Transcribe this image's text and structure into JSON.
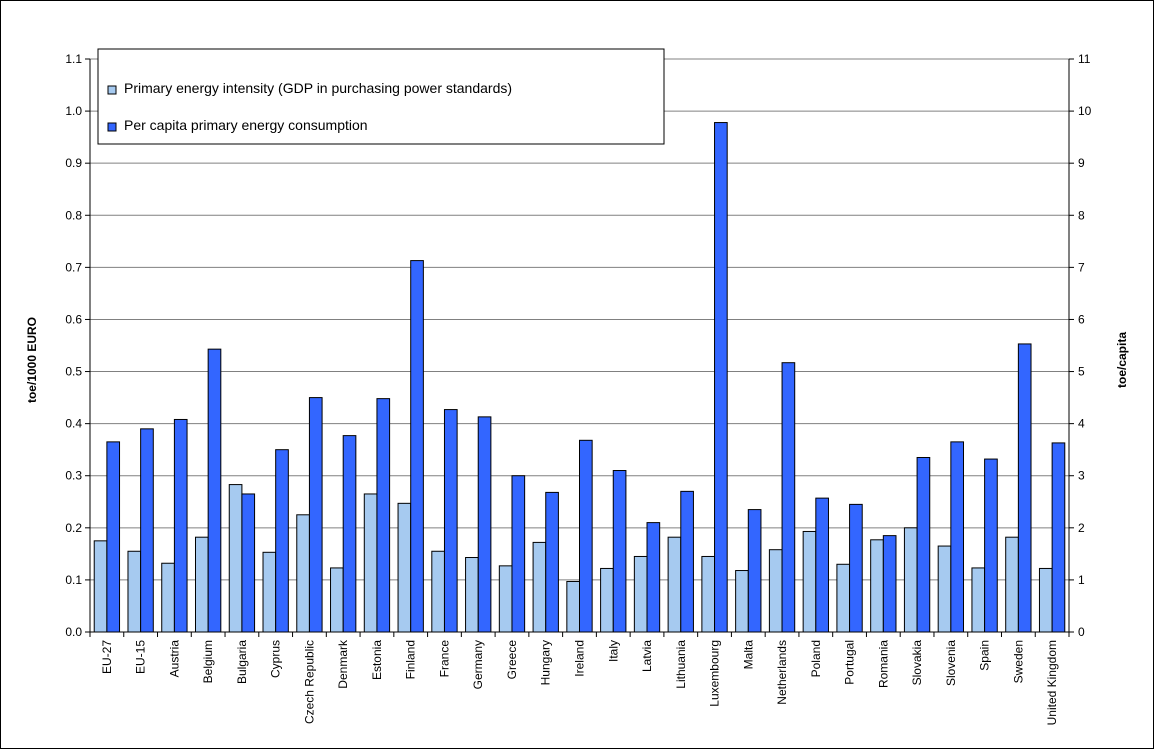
{
  "chart_data": {
    "type": "bar",
    "title": "",
    "ylabel": "toe/1000 EURO",
    "y2label": "toe/capita",
    "ylim": [
      0,
      1.1
    ],
    "y2lim": [
      0,
      11
    ],
    "yticks": [
      "0.0",
      "0.1",
      "0.2",
      "0.3",
      "0.4",
      "0.5",
      "0.6",
      "0.7",
      "0.8",
      "0.9",
      "1.0",
      "1.1"
    ],
    "y2ticks": [
      "0",
      "1",
      "2",
      "3",
      "4",
      "5",
      "6",
      "7",
      "8",
      "9",
      "10",
      "11"
    ],
    "grid": true,
    "legend_position": "top-left",
    "categories": [
      "EU-27",
      "EU-15",
      "Austria",
      "Belgium",
      "Bulgaria",
      "Cyprus",
      "Czech Republic",
      "Denmark",
      "Estonia",
      "Finland",
      "France",
      "Germany",
      "Greece",
      "Hungary",
      "Ireland",
      "Italy",
      "Latvia",
      "Lithuania",
      "Luxembourg",
      "Malta",
      "Netherlands",
      "Poland",
      "Portugal",
      "Romania",
      "Slovakia",
      "Slovenia",
      "Spain",
      "Sweden",
      "United Kingdom"
    ],
    "series": [
      {
        "name": "Primary energy intensity (GDP in purchasing power standards)",
        "axis": "left",
        "color": "#a6caf0",
        "values": [
          0.175,
          0.155,
          0.132,
          0.182,
          0.283,
          0.153,
          0.225,
          0.123,
          0.265,
          0.247,
          0.155,
          0.143,
          0.127,
          0.172,
          0.097,
          0.122,
          0.145,
          0.182,
          0.145,
          0.118,
          0.158,
          0.193,
          0.13,
          0.177,
          0.2,
          0.165,
          0.123,
          0.182,
          0.122
        ]
      },
      {
        "name": "Per capita primary energy consumption",
        "axis": "right",
        "color": "#3366ff",
        "values": [
          3.65,
          3.9,
          4.08,
          5.43,
          2.65,
          3.5,
          4.5,
          3.77,
          4.48,
          7.13,
          4.27,
          4.13,
          3.0,
          2.68,
          3.68,
          3.1,
          2.1,
          2.7,
          9.78,
          2.35,
          5.17,
          2.57,
          2.45,
          1.85,
          3.35,
          3.65,
          3.32,
          5.53,
          3.63
        ]
      }
    ]
  }
}
